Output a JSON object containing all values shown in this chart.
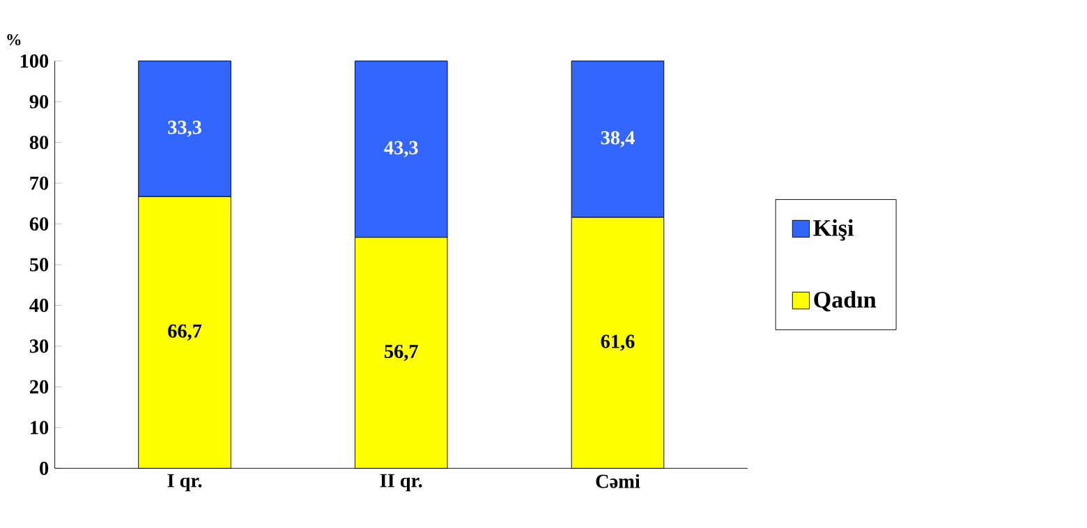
{
  "chart_data": {
    "type": "bar",
    "stacked": true,
    "ylabel": "%",
    "categories": [
      "I qr.",
      "II qr.",
      "Cəmi"
    ],
    "ylim": [
      0,
      100
    ],
    "yticks": [
      0,
      10,
      20,
      30,
      40,
      50,
      60,
      70,
      80,
      90,
      100
    ],
    "legend": "right",
    "series": [
      {
        "name": "Qadın",
        "color": "#ffff00",
        "values": [
          66.7,
          56.7,
          61.6
        ],
        "value_labels": [
          "66,7",
          "56,7",
          "61,6"
        ]
      },
      {
        "name": "Kişi",
        "color": "#3366ff",
        "values": [
          33.3,
          43.3,
          38.4
        ],
        "value_labels": [
          "33,3",
          "43,3",
          "38,4"
        ]
      }
    ]
  }
}
